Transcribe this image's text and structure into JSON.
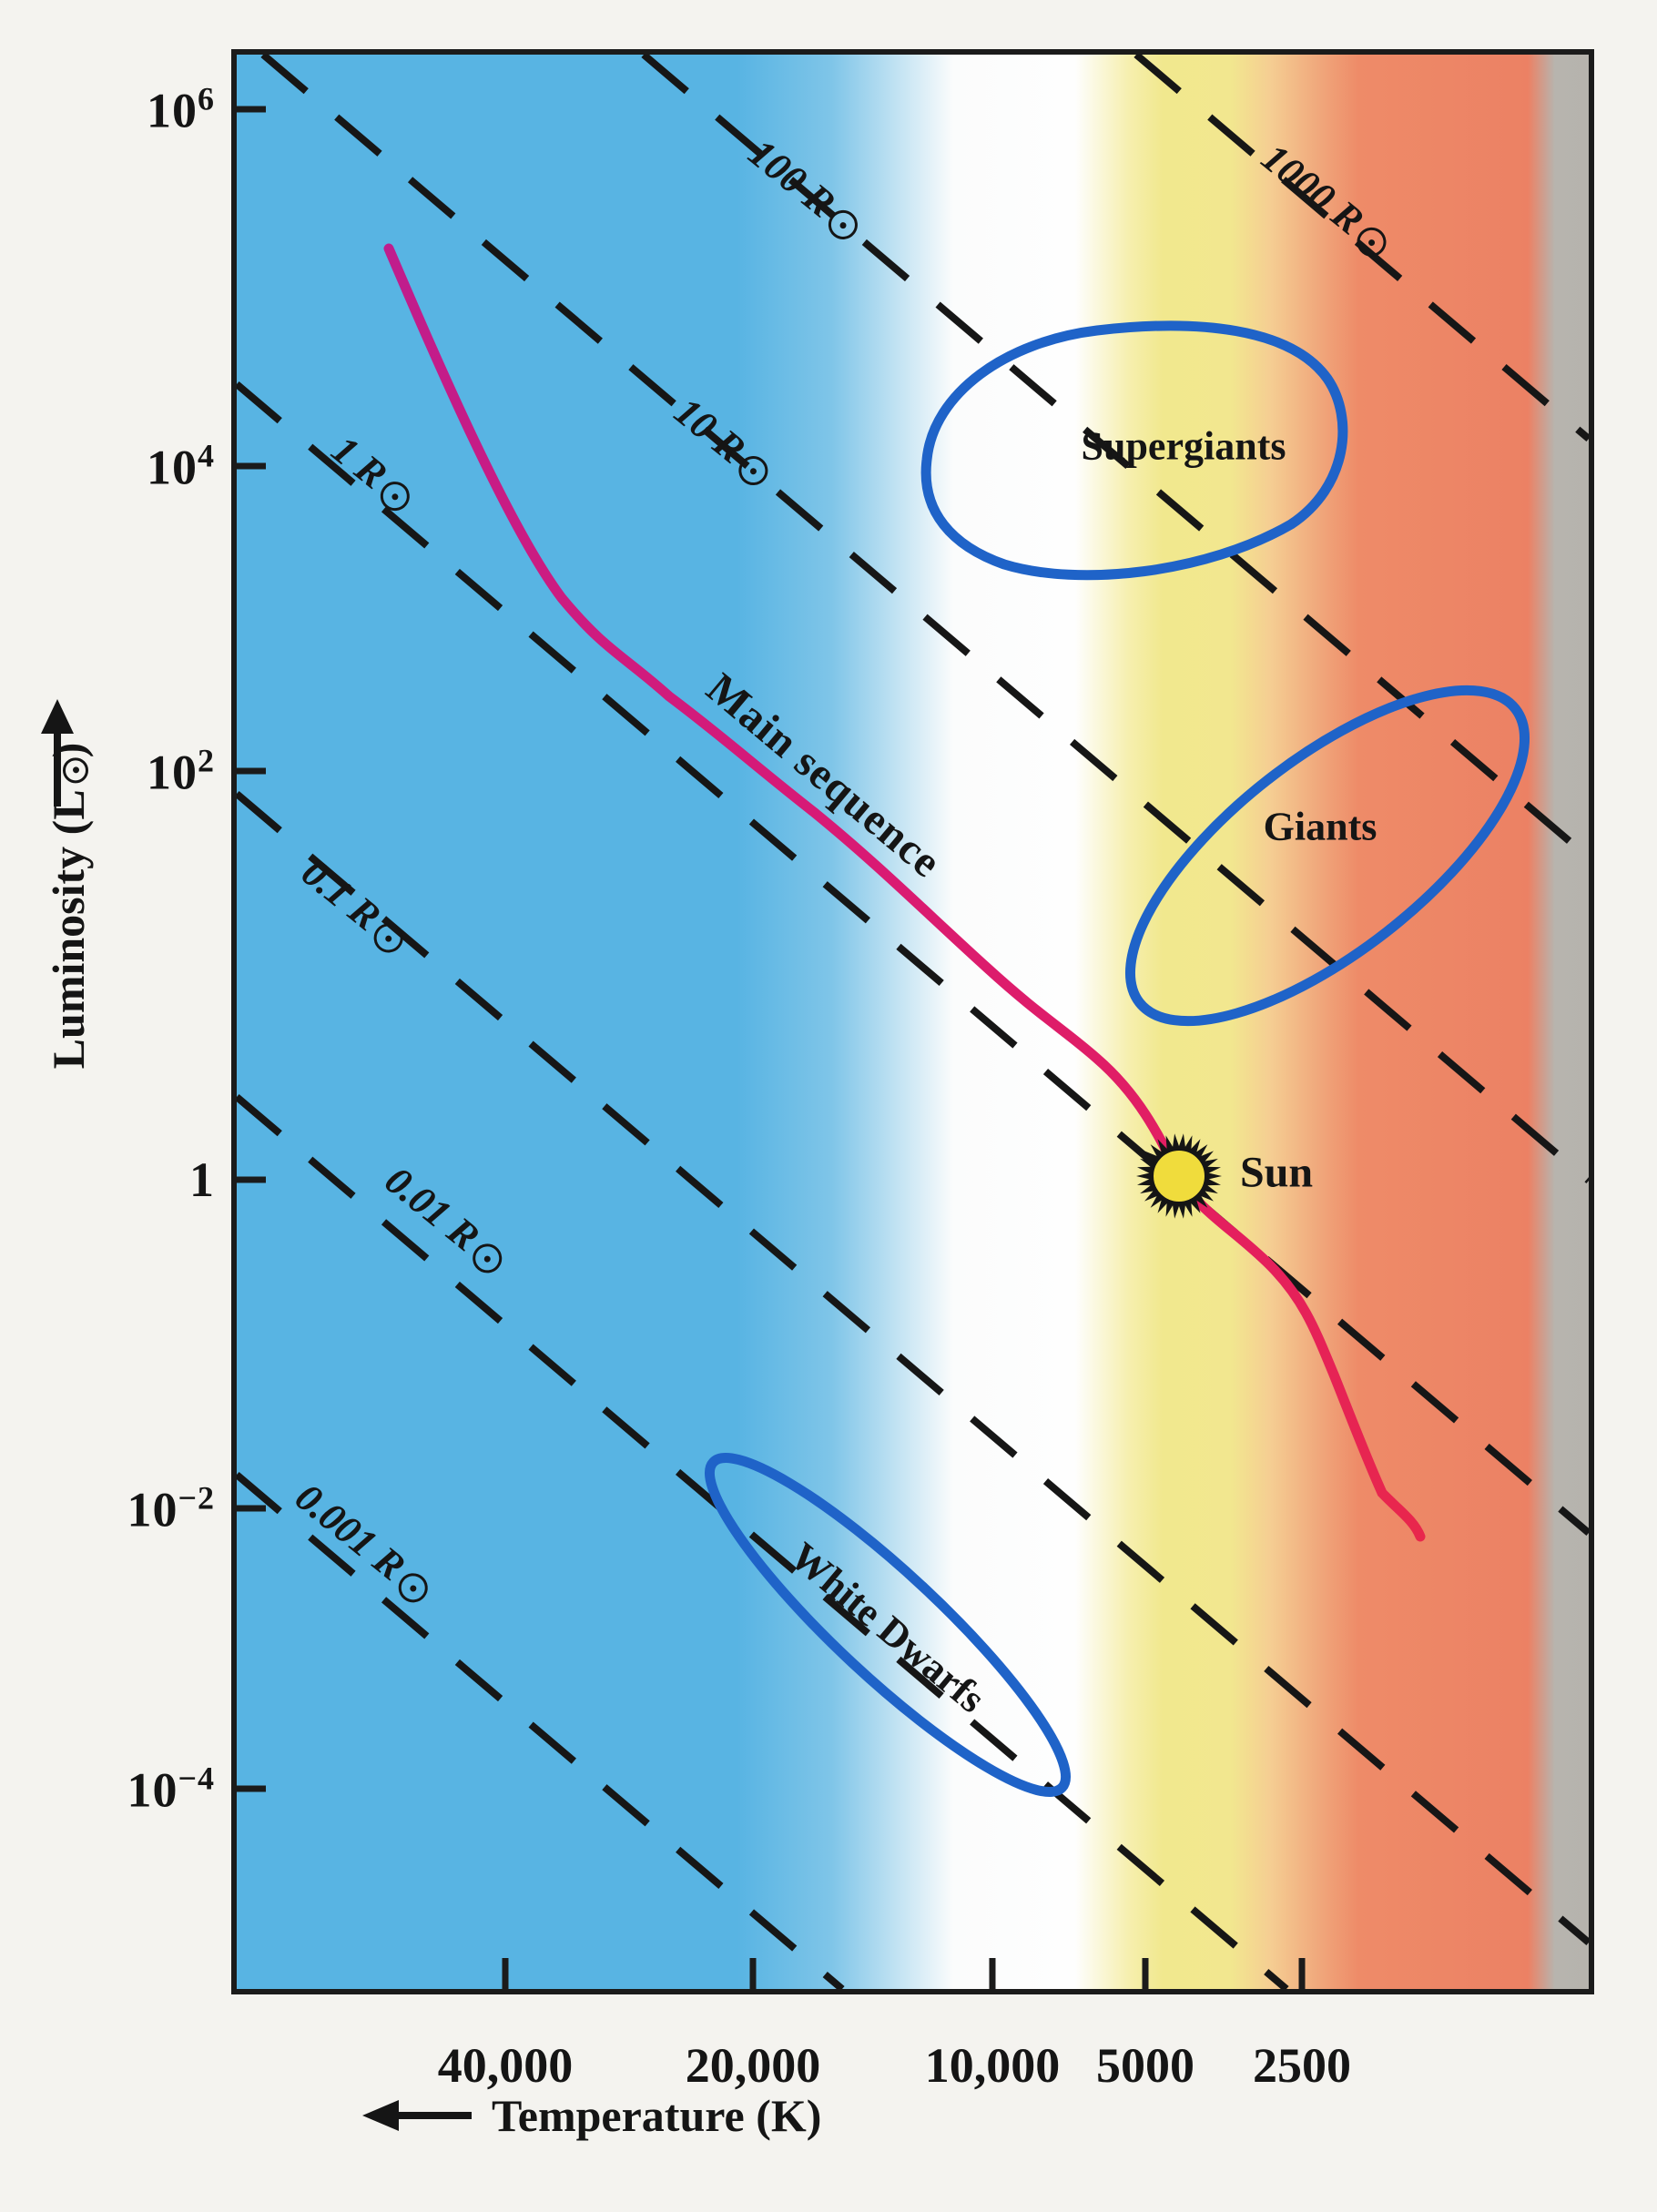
{
  "figure": {
    "y_axis": {
      "label_prefix": "Luminosity (L",
      "label_suffix": ")",
      "sun_symbol": "circled dot",
      "arrow_direction": "up",
      "ticks": [
        {
          "base": "10",
          "exp": "6"
        },
        {
          "base": "10",
          "exp": "4"
        },
        {
          "base": "10",
          "exp": "2"
        },
        {
          "base": "1",
          "exp": ""
        },
        {
          "base": "10",
          "exp": "−2"
        },
        {
          "base": "10",
          "exp": "−4"
        }
      ]
    },
    "x_axis": {
      "label": "Temperature (K)",
      "arrow_direction": "left",
      "ticks": [
        "40,000",
        "20,000",
        "10,000",
        "5000",
        "2500"
      ]
    },
    "radius_labels": [
      {
        "text": "1000 R"
      },
      {
        "text": "100 R"
      },
      {
        "text": "10 R"
      },
      {
        "text": "1 R"
      },
      {
        "text": "0.1 R"
      },
      {
        "text": "0.01 R"
      },
      {
        "text": "0.001 R"
      }
    ],
    "annotations": {
      "main_sequence": "Main sequence",
      "supergiants": "Supergiants",
      "giants": "Giants",
      "white_dwarfs": "White Dwarfs",
      "sun": "Sun"
    }
  },
  "chart_data": {
    "type": "line",
    "title": "",
    "xlabel": "Temperature (K)",
    "ylabel": "Luminosity (L☉)",
    "x_axis_reversed": true,
    "x_scale": "log (non-uniform, spectral-class spacing)",
    "y_scale": "log",
    "x_ticks_K": [
      40000,
      20000,
      10000,
      5000,
      2500
    ],
    "y_ticks_Lsun": [
      1000000,
      10000,
      100,
      1,
      0.01,
      0.0001
    ],
    "ylim": [
      1e-05,
      2000000
    ],
    "grid": false,
    "legend": "none",
    "series": [
      {
        "name": "Main sequence",
        "style": "solid magenta-to-crimson curve",
        "points_T_K_vs_L_Lsun": [
          [
            50000,
            200000
          ],
          [
            30000,
            15000
          ],
          [
            20000,
            1500
          ],
          [
            12000,
            100
          ],
          [
            9000,
            15
          ],
          [
            7000,
            3
          ],
          [
            5800,
            1
          ],
          [
            4500,
            0.15
          ],
          [
            3500,
            0.02
          ],
          [
            3000,
            0.004
          ]
        ]
      }
    ],
    "constant_radius_dashed_lines_Rsun": [
      1000,
      100,
      10,
      1,
      0.1,
      0.01,
      0.001
    ],
    "sun_marker": {
      "label": "Sun",
      "L_Lsun": 1,
      "on_series": "Main sequence"
    },
    "regions": [
      {
        "name": "Supergiants",
        "approx_L_Lsun": "10^4 – 10^5",
        "temperature_side": "cool"
      },
      {
        "name": "Giants",
        "approx_L_Lsun": "10 – 10^3",
        "temperature_side": "cool"
      },
      {
        "name": "White Dwarfs",
        "approx_L_Lsun": "10^-4 – 10^-1",
        "temperature_side": "hot-to-mid"
      }
    ],
    "background_spectral_bands_left_to_right": [
      {
        "color": "#58b4e3",
        "note": "blue (hottest stars)"
      },
      {
        "color": "#fefefe",
        "note": "white"
      },
      {
        "color": "#f1e88e",
        "note": "yellow"
      },
      {
        "color": "#f5cd92",
        "note": "pale orange"
      },
      {
        "color": "#ee8b68",
        "note": "orange-red"
      },
      {
        "color": "#b6b3ad",
        "note": "gray (coolest edge)"
      }
    ]
  },
  "colors": {
    "paper": "#f4f3ef",
    "plot_border": "#1b1b1b",
    "dashed_lines": "#161616",
    "main_sequence_start": "#bf1d8d",
    "main_sequence_end": "#e8274c",
    "region_outline": "#1f63c8",
    "sun_fill": "#f0dc3c",
    "text": "#151515"
  }
}
